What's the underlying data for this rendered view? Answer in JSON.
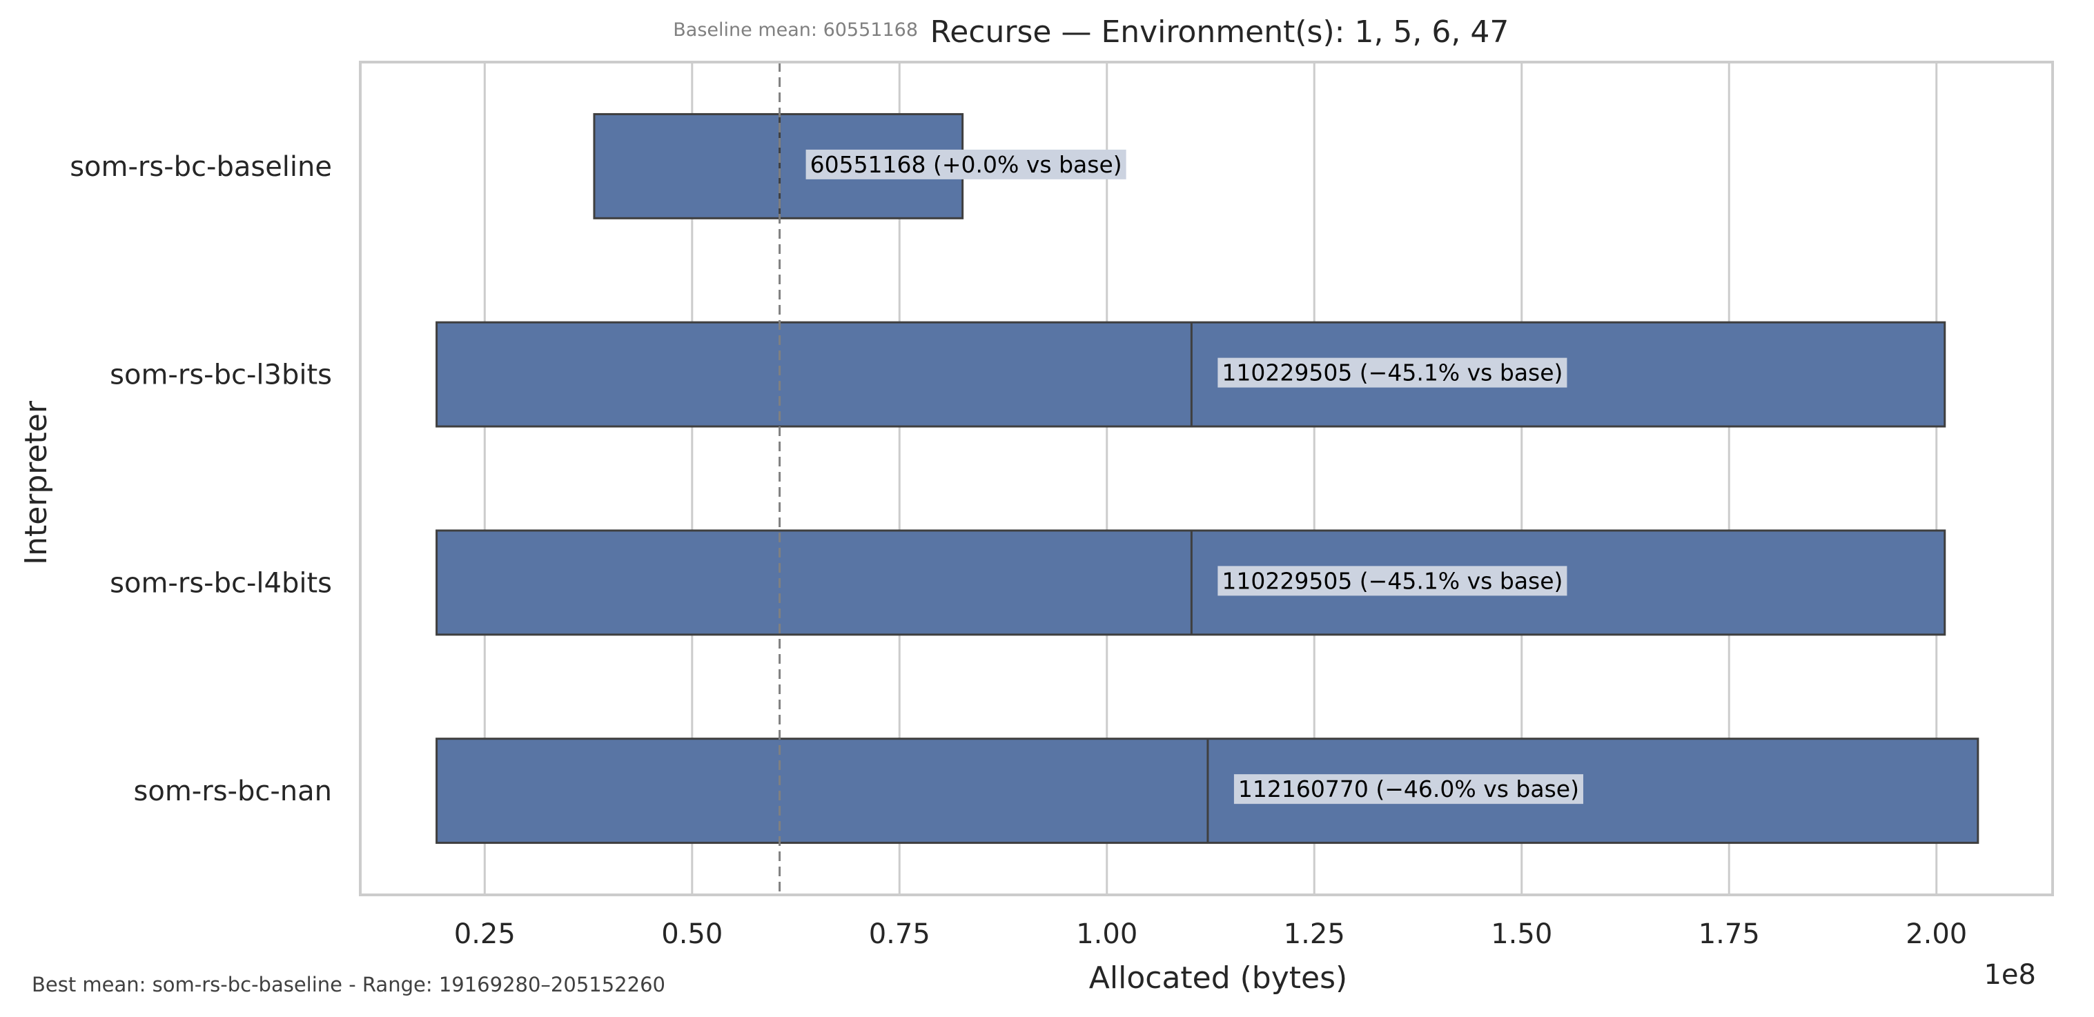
{
  "chart_data": {
    "type": "boxplot",
    "orientation": "horizontal",
    "title": "Recurse — Environment(s): 1, 5, 6, 47",
    "xlabel": "Allocated (bytes)",
    "ylabel": "Interpreter",
    "x_offset_label": "1e8",
    "xlim": [
      0.1,
      2.14
    ],
    "x_unit_scale": 100000000,
    "xticks": [
      0.25,
      0.5,
      0.75,
      1.0,
      1.25,
      1.5,
      1.75,
      2.0
    ],
    "xtick_labels": [
      "0.25",
      "0.50",
      "0.75",
      "1.00",
      "1.25",
      "1.50",
      "1.75",
      "2.00"
    ],
    "grid": true,
    "categories": [
      "som-rs-bc-baseline",
      "som-rs-bc-l3bits",
      "som-rs-bc-l4bits",
      "som-rs-bc-nan"
    ],
    "boxes": [
      {
        "category": "som-rs-bc-baseline",
        "q1": 0.382,
        "median": 0.6055,
        "q3": 0.826,
        "label": "60551168  (+0.0% vs base)"
      },
      {
        "category": "som-rs-bc-l3bits",
        "q1": 0.192,
        "median": 1.102,
        "q3": 2.01,
        "label": "110229505  (−45.1% vs base)"
      },
      {
        "category": "som-rs-bc-l4bits",
        "q1": 0.192,
        "median": 1.102,
        "q3": 2.01,
        "label": "110229505  (−45.1% vs base)"
      },
      {
        "category": "som-rs-bc-nan",
        "q1": 0.192,
        "median": 1.1216,
        "q3": 2.05,
        "label": "112160770  (−46.0% vs base)"
      }
    ],
    "baseline": {
      "value": 0.6055,
      "label": "Baseline mean: 60551168"
    },
    "footnote": "Best mean: som-rs-bc-baseline - Range: 19169280–205152260",
    "colors": {
      "box": "#5975a4",
      "edge": "#3f3f3f",
      "grid": "#cccccc",
      "baseline": "#808080",
      "label_bg": "#ccd3e0"
    }
  }
}
